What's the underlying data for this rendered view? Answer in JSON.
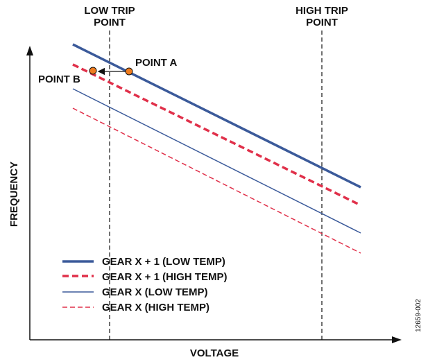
{
  "trip_points": {
    "low": [
      "LOW TRIP",
      "POINT"
    ],
    "high": [
      "HIGH TRIP",
      "POINT"
    ]
  },
  "points": {
    "a": "POINT A",
    "b": "POINT B"
  },
  "axes": {
    "x_label": "VOLTAGE",
    "y_label": "FREQUENCY"
  },
  "legend": [
    "GEAR X + 1 (LOW TEMP)",
    "GEAR X + 1 (HIGH TEMP)",
    "GEAR X (LOW TEMP)",
    "GEAR X (HIGH TEMP)"
  ],
  "figure_id": "12659-002"
}
